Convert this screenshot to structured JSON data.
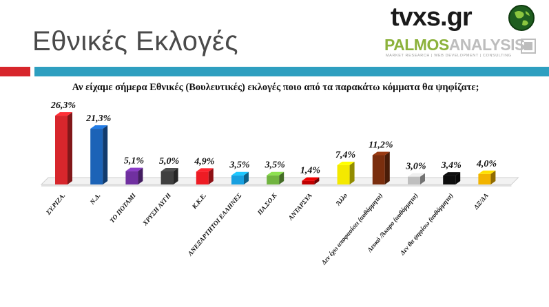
{
  "header": {
    "title": "Εθνικές Εκλογές",
    "tvxs_logo": "tvxs.gr",
    "palmos_logo_part1": "PALMOS",
    "palmos_logo_part2": "ANALYSIS",
    "palmos_tagline": "MARKET RESEARCH | WEB DEVELOPMENT | CONSULTING",
    "accent_red": "#d7262c",
    "accent_teal": "#2e9fc0"
  },
  "chart_data": {
    "type": "bar",
    "title": "Αν είχαμε σήμερα Εθνικές (Βουλευτικές) εκλογές ποιο από τα παρακάτω κόμματα θα ψηφίζατε;",
    "xlabel": "",
    "ylabel": "",
    "grid": false,
    "categories": [
      "ΣΥ.ΡΙΖΑ.",
      "Ν.Δ.",
      "ΤΟ ΠΟΤΑΜΙ",
      "ΧΡΥΣΗ ΑΥΓΗ",
      "Κ.Κ.Ε.",
      "ΑΝΕΞΑΡΤΗΤΟΙ ΕΛΛΗΝΕΣ",
      "ΠΑ.ΣΟ.Κ",
      "ΑΝΤΑΡΣΥΑ",
      "Άλλο",
      "Δεν έχω αποφασίσει (αυθόρμητα)",
      "Λευκό /Άκυρο (αυθόρμητα)",
      "Δεν θα ψηφίσω (αυθόρμητα)",
      "ΔΞ/ΔΑ"
    ],
    "values": [
      26.3,
      21.3,
      5.1,
      5.0,
      4.9,
      3.5,
      3.5,
      1.4,
      7.4,
      11.2,
      3.0,
      3.4,
      4.0
    ],
    "labels": [
      "26,3%",
      "21,3%",
      "5,1%",
      "5,0%",
      "4,9%",
      "3,5%",
      "3,5%",
      "1,4%",
      "7,4%",
      "11,2%",
      "3,0%",
      "3,4%",
      "4,0%"
    ],
    "colors": [
      "#d7262c",
      "#1c63b7",
      "#7030a0",
      "#404040",
      "#ee1c24",
      "#18a0e0",
      "#71b440",
      "#c00000",
      "#f4e900",
      "#7a2e0e",
      "#bfbfbf",
      "#0d0d0d",
      "#f2b400"
    ],
    "ylim": [
      0,
      30
    ]
  }
}
